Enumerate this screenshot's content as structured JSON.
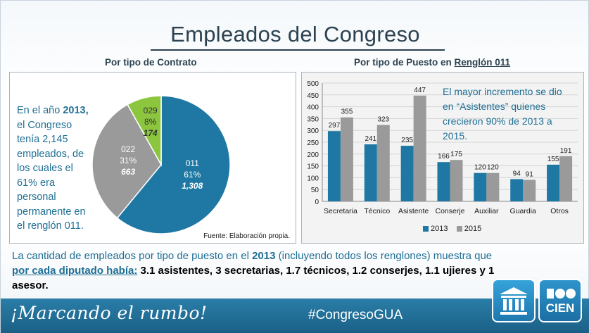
{
  "page": {
    "title": "Empleados del Congreso",
    "subtitle_left": "Por tipo de Contrato",
    "subtitle_right_prefix": "Por tipo de Puesto en ",
    "subtitle_right_underlined": "Renglón 011"
  },
  "pie_text": {
    "p1": "En el año ",
    "year": "2013,",
    "p2": " el Congreso tenía 2,145 empleados, de los cuales el 61% era personal permanente en el renglón 011."
  },
  "source": "Fuente: Elaboración propia.",
  "bar_note": "El mayor incremento se dio en “Asistentes” quienes crecieron 90% de 2013 a 2015.",
  "bottom": {
    "t1": "La cantidad de empleados por tipo de puesto en el ",
    "year": "2013",
    "t2": " (incluyendo todos los renglones) muestra que ",
    "underlined": "por cada diputado había:",
    "t3": " 3.1 asistentes, 3 secretarias, 1.7 técnicos, 1.2 conserjes, 1.1 ujieres y 1 asesor."
  },
  "footer": {
    "slogan": "¡Marcando el rumbo!",
    "hashtag": "#CongresoGUA",
    "logo_text": "CIEN"
  },
  "colors": {
    "series_2013": "#1f78a4",
    "series_2015": "#9a9a9a",
    "pie_011": "#1f78a4",
    "pie_022": "#9a9a9a",
    "pie_029": "#8cc63f"
  },
  "chart_data": [
    {
      "type": "pie",
      "title": "Por tipo de Contrato",
      "slices": [
        {
          "label": "011",
          "percent": "61%",
          "value": 1308,
          "value_label": "1,308"
        },
        {
          "label": "022",
          "percent": "31%",
          "value": 663,
          "value_label": "663"
        },
        {
          "label": "029",
          "percent": "8%",
          "value": 174,
          "value_label": "174"
        }
      ]
    },
    {
      "type": "bar",
      "title": "Por tipo de Puesto en Renglón 011",
      "categories": [
        "Secretaria",
        "Técnico",
        "Asistente",
        "Conserje",
        "Auxiliar",
        "Guardia",
        "Otros"
      ],
      "series": [
        {
          "name": "2013",
          "values": [
            297,
            241,
            235,
            166,
            120,
            94,
            155
          ]
        },
        {
          "name": "2015",
          "values": [
            355,
            323,
            447,
            175,
            120,
            91,
            191
          ]
        }
      ],
      "ylim": [
        0,
        500
      ],
      "yticks": [
        0,
        50,
        100,
        150,
        200,
        250,
        300,
        350,
        400,
        450,
        500
      ],
      "legend": [
        "2013",
        "2015"
      ]
    }
  ]
}
